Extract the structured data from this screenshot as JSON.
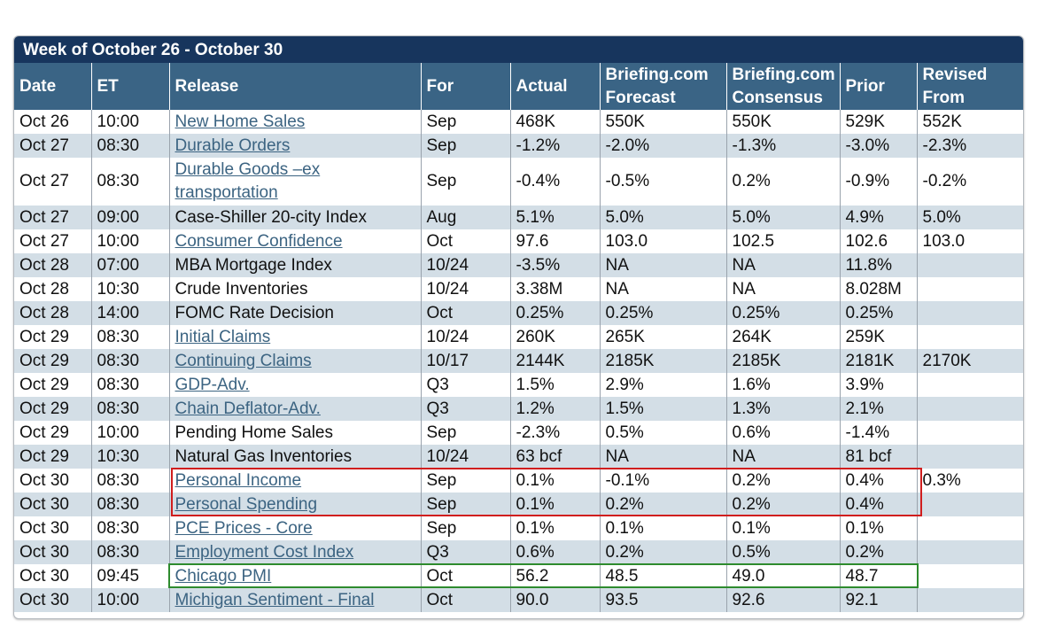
{
  "week_title": "Week of October 26 - October 30",
  "headers": {
    "date": "Date",
    "et": "ET",
    "release": "Release",
    "for": "For",
    "actual": "Actual",
    "forecast_1": "Briefing.com",
    "forecast_2": "Forecast",
    "consensus_1": "Briefing.com",
    "consensus_2": "Consensus",
    "prior": "Prior",
    "revised_1": "Revised",
    "revised_2": "From"
  },
  "rows": [
    {
      "date": "Oct 26",
      "et": "10:00",
      "release": "New Home Sales",
      "link": true,
      "for": "Sep",
      "actual": "468K",
      "forecast": "550K",
      "consensus": "550K",
      "prior": "529K",
      "revised": "552K"
    },
    {
      "date": "Oct 27",
      "et": "08:30",
      "release": "Durable Orders",
      "link": true,
      "for": "Sep",
      "actual": "-1.2%",
      "forecast": "-2.0%",
      "consensus": "-1.3%",
      "prior": "-3.0%",
      "revised": "-2.3%"
    },
    {
      "date": "Oct 27",
      "et": "08:30",
      "release": "Durable Goods –ex transportation",
      "link": true,
      "for": "Sep",
      "actual": "-0.4%",
      "forecast": "-0.5%",
      "consensus": "0.2%",
      "prior": "-0.9%",
      "revised": "-0.2%"
    },
    {
      "date": "Oct 27",
      "et": "09:00",
      "release": "Case-Shiller 20-city Index",
      "link": false,
      "for": "Aug",
      "actual": "5.1%",
      "forecast": "5.0%",
      "consensus": "5.0%",
      "prior": "4.9%",
      "revised": "5.0%"
    },
    {
      "date": "Oct 27",
      "et": "10:00",
      "release": "Consumer Confidence",
      "link": true,
      "for": "Oct",
      "actual": "97.6",
      "forecast": "103.0",
      "consensus": "102.5",
      "prior": "102.6",
      "revised": "103.0"
    },
    {
      "date": "Oct 28",
      "et": "07:00",
      "release": "MBA Mortgage Index",
      "link": false,
      "for": "10/24",
      "actual": "-3.5%",
      "forecast": "NA",
      "consensus": "NA",
      "prior": "11.8%",
      "revised": ""
    },
    {
      "date": "Oct 28",
      "et": "10:30",
      "release": "Crude Inventories",
      "link": false,
      "for": "10/24",
      "actual": "3.38M",
      "forecast": "NA",
      "consensus": "NA",
      "prior": "8.028M",
      "revised": ""
    },
    {
      "date": "Oct 28",
      "et": "14:00",
      "release": "FOMC Rate Decision",
      "link": false,
      "for": "Oct",
      "actual": "0.25%",
      "forecast": "0.25%",
      "consensus": "0.25%",
      "prior": "0.25%",
      "revised": ""
    },
    {
      "date": "Oct 29",
      "et": "08:30",
      "release": "Initial Claims",
      "link": true,
      "for": "10/24",
      "actual": "260K",
      "forecast": "265K",
      "consensus": "264K",
      "prior": "259K",
      "revised": ""
    },
    {
      "date": "Oct 29",
      "et": "08:30",
      "release": "Continuing Claims",
      "link": true,
      "for": "10/17",
      "actual": "2144K",
      "forecast": "2185K",
      "consensus": "2185K",
      "prior": "2181K",
      "revised": "2170K"
    },
    {
      "date": "Oct 29",
      "et": "08:30",
      "release": "GDP-Adv.",
      "link": true,
      "for": "Q3",
      "actual": "1.5%",
      "forecast": "2.9%",
      "consensus": "1.6%",
      "prior": "3.9%",
      "revised": ""
    },
    {
      "date": "Oct 29",
      "et": "08:30",
      "release": "Chain Deflator-Adv.",
      "link": true,
      "for": "Q3",
      "actual": "1.2%",
      "forecast": "1.5%",
      "consensus": "1.3%",
      "prior": "2.1%",
      "revised": ""
    },
    {
      "date": "Oct 29",
      "et": "10:00",
      "release": "Pending Home Sales",
      "link": false,
      "for": "Sep",
      "actual": "-2.3%",
      "forecast": "0.5%",
      "consensus": "0.6%",
      "prior": "-1.4%",
      "revised": ""
    },
    {
      "date": "Oct 29",
      "et": "10:30",
      "release": "Natural Gas Inventories",
      "link": false,
      "for": "10/24",
      "actual": "63 bcf",
      "forecast": "NA",
      "consensus": "NA",
      "prior": "81 bcf",
      "revised": ""
    },
    {
      "date": "Oct 30",
      "et": "08:30",
      "release": "Personal Income",
      "link": true,
      "for": "Sep",
      "actual": "0.1%",
      "forecast": "-0.1%",
      "consensus": "0.2%",
      "prior": "0.4%",
      "revised": "0.3%"
    },
    {
      "date": "Oct 30",
      "et": "08:30",
      "release": "Personal Spending",
      "link": true,
      "for": "Sep",
      "actual": "0.1%",
      "forecast": "0.2%",
      "consensus": "0.2%",
      "prior": "0.4%",
      "revised": ""
    },
    {
      "date": "Oct 30",
      "et": "08:30",
      "release": "PCE Prices - Core",
      "link": true,
      "for": "Sep",
      "actual": "0.1%",
      "forecast": "0.1%",
      "consensus": "0.1%",
      "prior": "0.1%",
      "revised": ""
    },
    {
      "date": "Oct 30",
      "et": "08:30",
      "release": "Employment Cost Index",
      "link": true,
      "for": "Q3",
      "actual": "0.6%",
      "forecast": "0.2%",
      "consensus": "0.5%",
      "prior": "0.2%",
      "revised": ""
    },
    {
      "date": "Oct 30",
      "et": "09:45",
      "release": "Chicago PMI",
      "link": true,
      "for": "Oct",
      "actual": "56.2",
      "forecast": "48.5",
      "consensus": "49.0",
      "prior": "48.7",
      "revised": ""
    },
    {
      "date": "Oct 30",
      "et": "10:00",
      "release": "Michigan Sentiment - Final",
      "link": true,
      "for": "Oct",
      "actual": "90.0",
      "forecast": "93.5",
      "consensus": "92.6",
      "prior": "92.1",
      "revised": ""
    }
  ],
  "colors": {
    "title_bar": "#17355d",
    "header_bar": "#3a6485",
    "row_alt": "#d3dee6",
    "link": "#3c6482",
    "highlight_red": "#d01e1e",
    "highlight_green": "#2e8b2e"
  }
}
